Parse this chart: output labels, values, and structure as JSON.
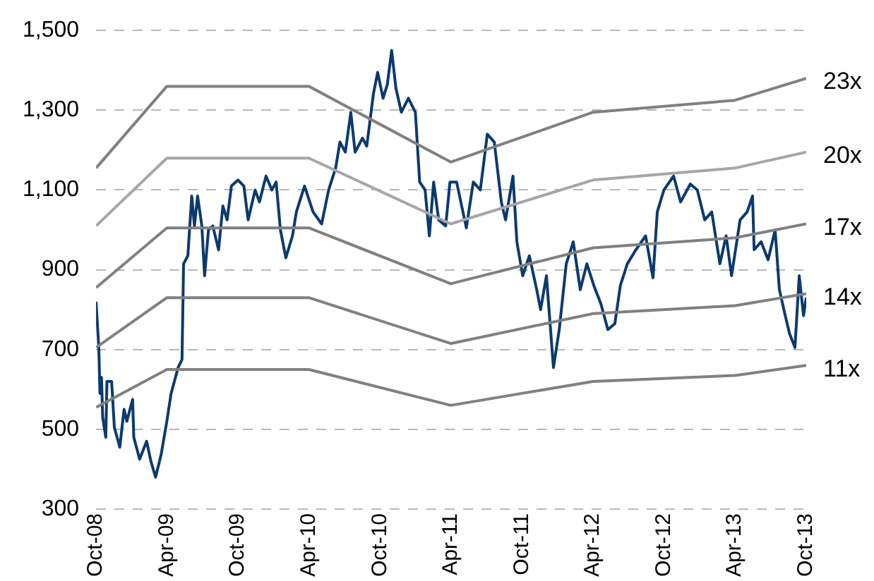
{
  "chart_data": {
    "type": "line",
    "xlim": [
      "2008-10-01",
      "2013-10-01"
    ],
    "xticks": [
      {
        "value": "2008-10-01",
        "label": "Oct-08"
      },
      {
        "value": "2009-04-01",
        "label": "Apr-09"
      },
      {
        "value": "2009-10-01",
        "label": "Oct-09"
      },
      {
        "value": "2010-04-01",
        "label": "Apr-10"
      },
      {
        "value": "2010-10-01",
        "label": "Oct-10"
      },
      {
        "value": "2011-04-01",
        "label": "Apr-11"
      },
      {
        "value": "2011-10-01",
        "label": "Oct-11"
      },
      {
        "value": "2012-04-01",
        "label": "Apr-12"
      },
      {
        "value": "2012-10-01",
        "label": "Oct-12"
      },
      {
        "value": "2013-04-01",
        "label": "Apr-13"
      },
      {
        "value": "2013-10-01",
        "label": "Oct-13"
      }
    ],
    "ylim": [
      300,
      1500
    ],
    "yticks": [
      300,
      500,
      700,
      900,
      {
        "value": 1100,
        "label": "1,100"
      },
      {
        "value": 1300,
        "label": "1,300"
      },
      {
        "value": 1500,
        "label": "1,500"
      }
    ],
    "grid": "y",
    "legend": false,
    "marker": "none",
    "series": [
      {
        "name": "23x",
        "color": "#808080",
        "x": [
          "2008-10-01",
          "2009-04-01",
          "2010-04-01",
          "2011-04-01",
          "2012-04-01",
          "2013-04-01",
          "2013-10-01"
        ],
        "values": [
          1155,
          1360,
          1360,
          1170,
          1295,
          1325,
          1380
        ]
      },
      {
        "name": "20x",
        "color": "#a6a6a6",
        "x": [
          "2008-10-01",
          "2009-04-01",
          "2010-04-01",
          "2011-04-01",
          "2012-04-01",
          "2013-04-01",
          "2013-10-01"
        ],
        "values": [
          1010,
          1180,
          1180,
          1015,
          1125,
          1155,
          1195
        ]
      },
      {
        "name": "17x",
        "color": "#808080",
        "x": [
          "2008-10-01",
          "2009-04-01",
          "2010-04-01",
          "2011-04-01",
          "2012-04-01",
          "2013-04-01",
          "2013-10-01"
        ],
        "values": [
          855,
          1005,
          1005,
          865,
          955,
          980,
          1015
        ]
      },
      {
        "name": "14x",
        "color": "#808080",
        "x": [
          "2008-10-01",
          "2009-04-01",
          "2010-04-01",
          "2011-04-01",
          "2012-04-01",
          "2013-04-01",
          "2013-10-01"
        ],
        "values": [
          705,
          830,
          830,
          715,
          790,
          810,
          840
        ]
      },
      {
        "name": "11x",
        "color": "#808080",
        "x": [
          "2008-10-01",
          "2009-04-01",
          "2010-04-01",
          "2011-04-01",
          "2012-04-01",
          "2013-04-01",
          "2013-10-01"
        ],
        "values": [
          555,
          650,
          650,
          560,
          620,
          635,
          660
        ]
      },
      {
        "color": "#0b3a6e",
        "x": [
          "2008-10-01",
          "2008-10-08",
          "2008-10-11",
          "2008-10-15",
          "2008-10-18",
          "2008-10-26",
          "2008-10-29",
          "2008-11-10",
          "2008-11-17",
          "2008-12-01",
          "2008-12-12",
          "2008-12-19",
          "2009-01-03",
          "2009-01-06",
          "2009-01-21",
          "2009-02-08",
          "2009-02-19",
          "2009-03-03",
          "2009-03-17",
          "2009-04-01",
          "2009-04-12",
          "2009-04-30",
          "2009-05-10",
          "2009-05-14",
          "2009-05-25",
          "2009-06-04",
          "2009-06-11",
          "2009-06-19",
          "2009-06-30",
          "2009-07-07",
          "2009-07-17",
          "2009-07-28",
          "2009-08-12",
          "2009-08-23",
          "2009-09-03",
          "2009-09-14",
          "2009-10-01",
          "2009-10-16",
          "2009-10-27",
          "2009-11-14",
          "2009-11-25",
          "2009-12-12",
          "2009-12-27",
          "2010-01-07",
          "2010-01-18",
          "2010-02-01",
          "2010-02-18",
          "2010-02-28",
          "2010-03-21",
          "2010-04-12",
          "2010-05-04",
          "2010-05-22",
          "2010-06-09",
          "2010-06-20",
          "2010-07-04",
          "2010-07-18",
          "2010-07-29",
          "2010-08-17",
          "2010-08-28",
          "2010-09-14",
          "2010-09-25",
          "2010-10-09",
          "2010-10-20",
          "2010-10-31",
          "2010-11-11",
          "2010-11-25",
          "2010-12-13",
          "2010-12-31",
          "2011-01-11",
          "2011-01-25",
          "2011-02-05",
          "2011-02-16",
          "2011-03-01",
          "2011-03-19",
          "2011-03-30",
          "2011-04-16",
          "2011-05-11",
          "2011-05-29",
          "2011-06-16",
          "2011-07-04",
          "2011-07-22",
          "2011-08-09",
          "2011-08-20",
          "2011-09-08",
          "2011-09-18",
          "2011-10-03",
          "2011-10-20",
          "2011-11-08",
          "2011-11-18",
          "2011-12-03",
          "2011-12-21",
          "2012-01-05",
          "2012-01-23",
          "2012-02-10",
          "2012-02-28",
          "2012-03-16",
          "2012-04-03",
          "2012-04-21",
          "2012-05-09",
          "2012-05-27",
          "2012-06-10",
          "2012-06-28",
          "2012-07-20",
          "2012-08-14",
          "2012-09-02",
          "2012-09-13",
          "2012-09-30",
          "2012-10-25",
          "2012-11-12",
          "2012-12-07",
          "2012-12-25",
          "2013-01-13",
          "2013-01-31",
          "2013-02-21",
          "2013-03-09",
          "2013-03-23",
          "2013-04-14",
          "2013-05-02",
          "2013-05-16",
          "2013-05-20",
          "2013-06-07",
          "2013-06-25",
          "2013-07-13",
          "2013-07-24",
          "2013-08-08",
          "2013-08-19",
          "2013-09-02",
          "2013-09-13",
          "2013-09-24",
          "2013-10-01"
        ],
        "values": [
          820,
          705,
          590,
          630,
          530,
          480,
          620,
          620,
          505,
          455,
          550,
          520,
          575,
          480,
          425,
          470,
          420,
          380,
          435,
          520,
          590,
          655,
          675,
          915,
          935,
          1085,
          1010,
          1085,
          1010,
          885,
          1000,
          1010,
          950,
          1060,
          1025,
          1110,
          1125,
          1110,
          1025,
          1100,
          1070,
          1135,
          1100,
          1120,
          1000,
          930,
          985,
          1045,
          1110,
          1045,
          1015,
          1100,
          1155,
          1220,
          1195,
          1295,
          1195,
          1230,
          1210,
          1340,
          1395,
          1330,
          1365,
          1450,
          1355,
          1295,
          1330,
          1295,
          1120,
          1100,
          985,
          1120,
          1025,
          1010,
          1120,
          1120,
          1005,
          1120,
          1100,
          1240,
          1220,
          1070,
          1025,
          1135,
          970,
          885,
          935,
          850,
          800,
          885,
          655,
          750,
          915,
          970,
          850,
          915,
          860,
          815,
          750,
          765,
          860,
          915,
          950,
          985,
          880,
          1045,
          1100,
          1135,
          1070,
          1115,
          1100,
          1025,
          1045,
          915,
          985,
          885,
          1025,
          1045,
          1085,
          950,
          970,
          925,
          1000,
          850,
          785,
          740,
          705,
          885,
          785,
          830
        ]
      }
    ]
  }
}
